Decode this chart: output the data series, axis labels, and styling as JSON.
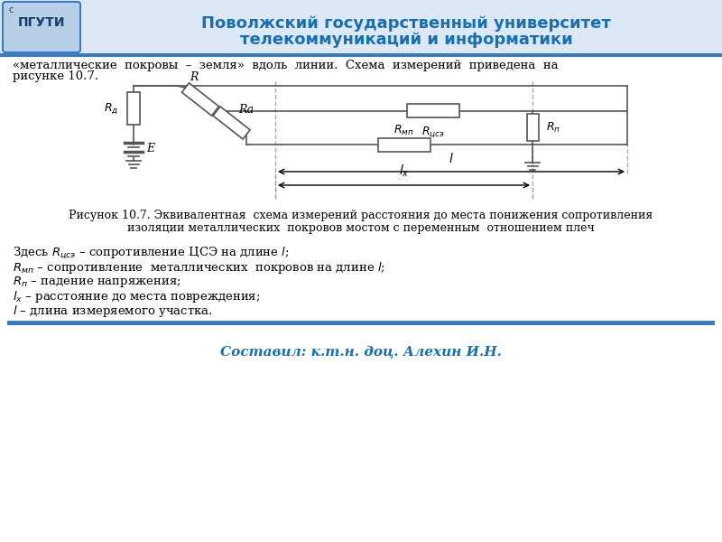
{
  "title_line1": "Поволжский государственный университет",
  "title_line2": "телекоммуникаций и информатики",
  "title_color": "#1a6faf",
  "header_bar_color": "#3a7abf",
  "header_bg": "#dce8f5",
  "intro_text_line1": "«металлические  покровы  –  земля»  вдоль  линии.  Схема  измерений  приведена  на",
  "intro_text_line2": "рисунке 10.7.",
  "caption_line1": "Рисунок 10.7. Эквивалентная  схема измерений расстояния до места понижения сопротивления",
  "caption_line2": "изоляции металлических  покровов мостом с переменным  отношением плеч",
  "desc_lines": [
    "Здесь $R_{цсэ}$ – сопротивление ЦСЭ на длине $l$;",
    "$R_{мп}$ – сопротивление  металлических  покровов на длине $l$;",
    "$R_{п}$ – падение напряжения;",
    "$l_{x}$ – расстояние до места повреждения;",
    "$l$ – длина измеряемого участка."
  ],
  "footer_text": "Составил: к.т.н. доц. Алехин И.Н.",
  "footer_color": "#1a6faf",
  "bottom_bar_color": "#3a7abf",
  "bg_color": "#ffffff",
  "circuit_color": "#555555",
  "dashed_color": "#aaaaaa"
}
